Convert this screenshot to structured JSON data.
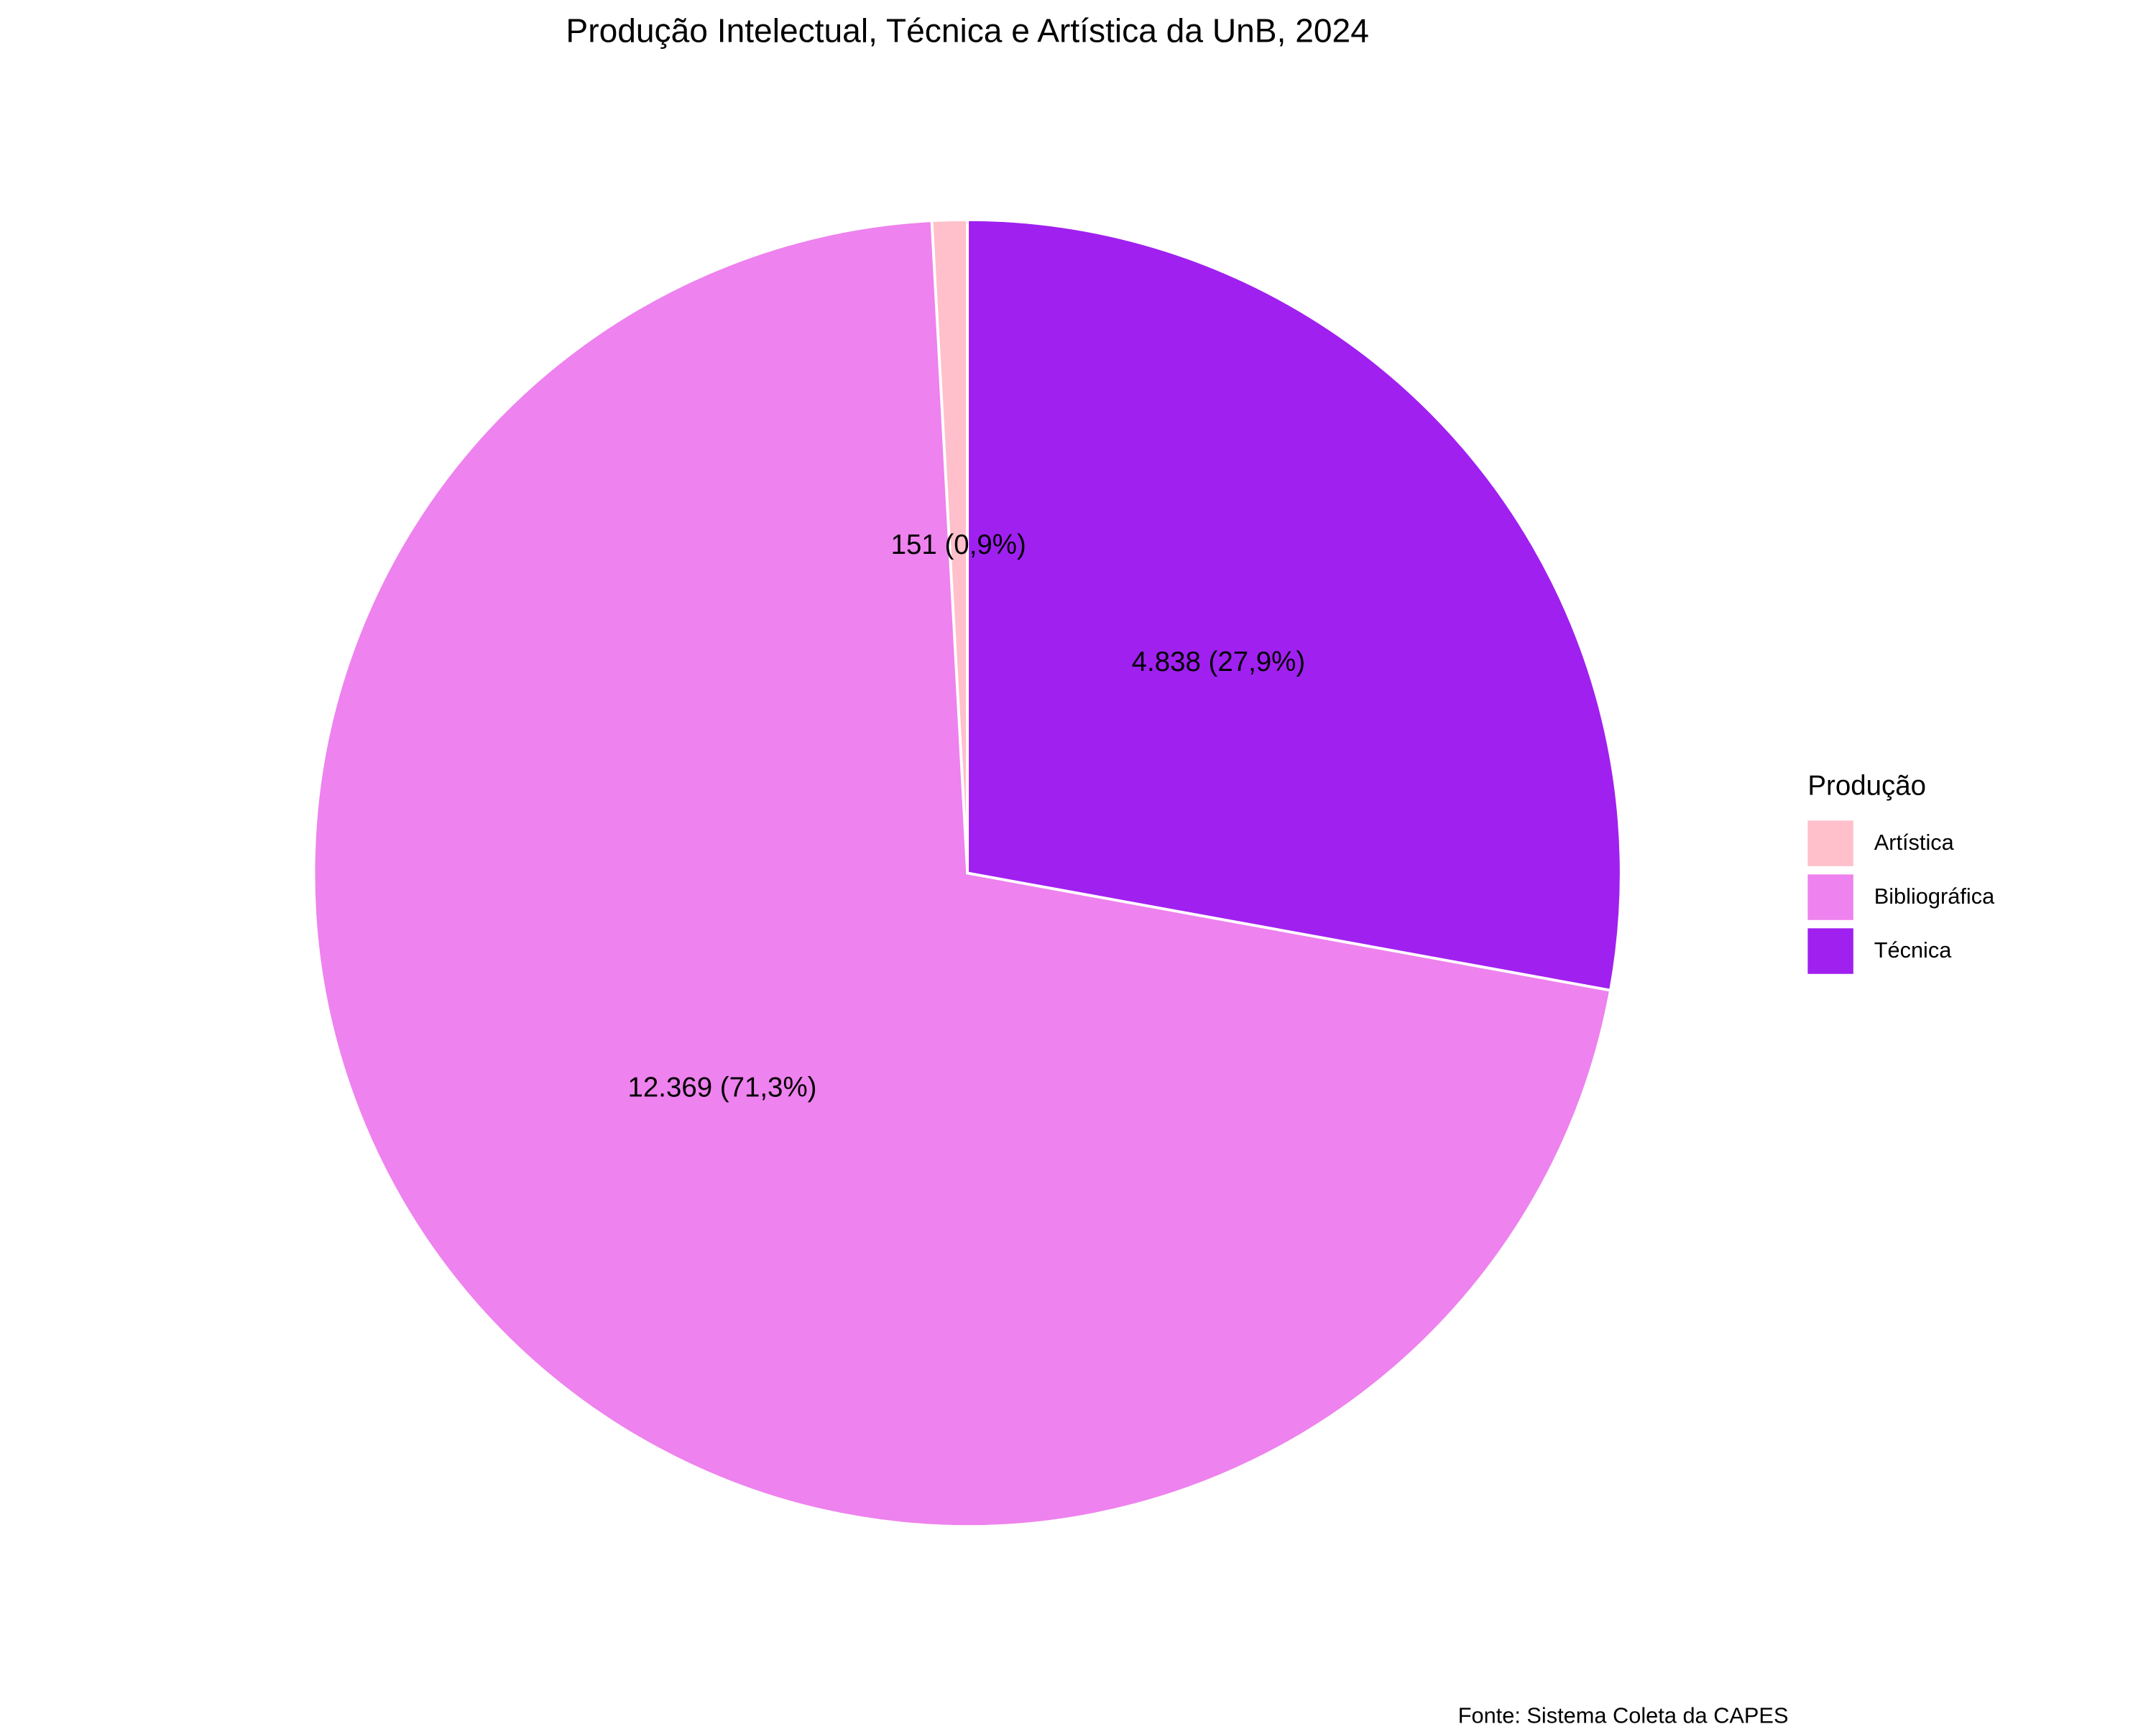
{
  "chart_data": {
    "type": "pie",
    "title": "Produção Intelectual, Técnica e Artística da UnB, 2024",
    "categories": [
      "Artística",
      "Bibliográfica",
      "Técnica"
    ],
    "values": [
      151,
      12369,
      4838
    ],
    "value_labels": [
      "151 (0,9%)",
      "12.369 (71,3%)",
      "4.838 (27,9%)"
    ],
    "colors": [
      "#FFC0CB",
      "#EE82EE",
      "#A020F0"
    ],
    "legend_title": "Produção",
    "legend_position": "right",
    "caption": "Fonte: Sistema Coleta da CAPES"
  }
}
